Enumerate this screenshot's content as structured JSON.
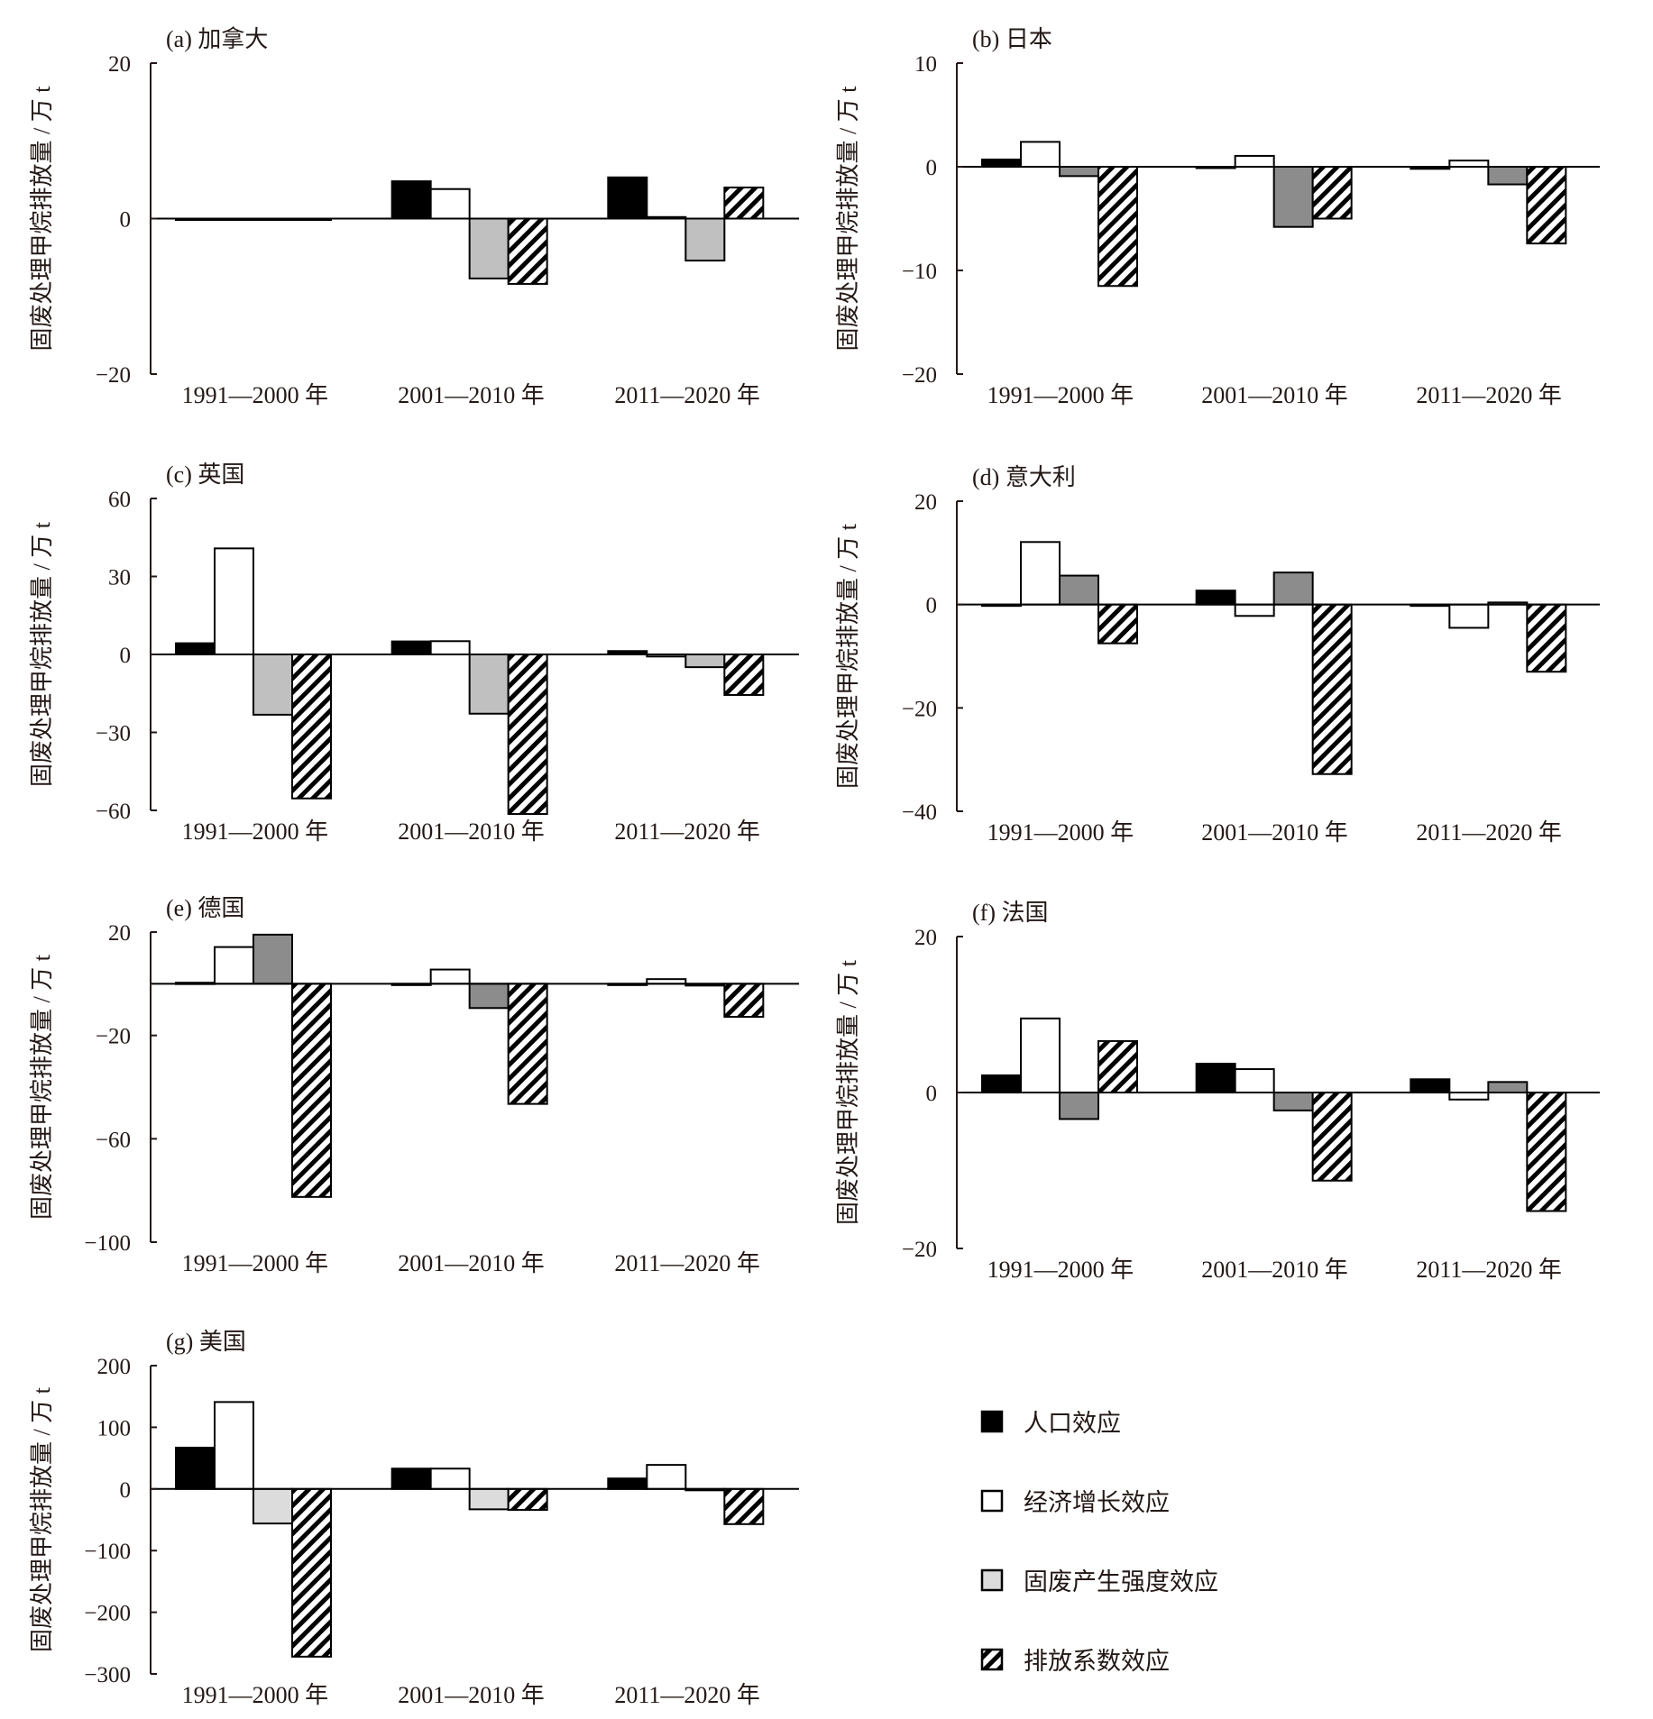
{
  "figure": {
    "ylabel": "固废处理甲烷排放量 / 万 t",
    "legend": [
      {
        "key": "population",
        "label": "人口效应",
        "style": "black"
      },
      {
        "key": "economic",
        "label": "经济增长效应",
        "style": "white"
      },
      {
        "key": "intensity",
        "label": "固废产生强度效应",
        "style": "grey"
      },
      {
        "key": "emission_factor",
        "label": "排放系数效应",
        "style": "hatched"
      }
    ],
    "colors": {
      "black": "#000000",
      "white": "#ffffff",
      "grey_light": "#c0c0c0",
      "grey_lighter": "#dcdcdc",
      "grey_dark": "#8c8c8c",
      "axis": "#231815"
    }
  },
  "chart_data": [
    {
      "type": "bar",
      "title": "(a) 加拿大",
      "ylabel": "固废处理甲烷排放量 / 万 t",
      "categories": [
        "1991—2000 年",
        "2001—2010 年",
        "2011—2020 年"
      ],
      "ylim": [
        -20,
        20
      ],
      "yticks": [
        20,
        0,
        -20
      ],
      "grey_shade": "grey_light",
      "series": [
        {
          "name": "人口效应",
          "values": [
            0,
            4.8,
            5.3
          ]
        },
        {
          "name": "经济增长效应",
          "values": [
            0,
            3.8,
            0.2
          ]
        },
        {
          "name": "固废产生强度效应",
          "values": [
            0,
            -7.7,
            -5.4
          ]
        },
        {
          "name": "排放系数效应",
          "values": [
            0,
            -8.4,
            4.0
          ]
        }
      ]
    },
    {
      "type": "bar",
      "title": "(b) 日本",
      "ylabel": "固废处理甲烷排放量 / 万 t",
      "categories": [
        "1991—2000 年",
        "2001—2010 年",
        "2011—2020 年"
      ],
      "ylim": [
        -20,
        10
      ],
      "yticks": [
        10,
        0,
        -10,
        -20
      ],
      "grey_shade": "grey_dark",
      "series": [
        {
          "name": "人口效应",
          "values": [
            0.7,
            -0.05,
            -0.2
          ]
        },
        {
          "name": "经济增长效应",
          "values": [
            2.4,
            1.05,
            0.6
          ]
        },
        {
          "name": "固废产生强度效应",
          "values": [
            -0.9,
            -5.8,
            -1.7
          ]
        },
        {
          "name": "排放系数效应",
          "values": [
            -11.5,
            -5.0,
            -7.4
          ]
        }
      ]
    },
    {
      "type": "bar",
      "title": "(c) 英国",
      "ylabel": "固废处理甲烷排放量 / 万 t",
      "categories": [
        "1991—2000 年",
        "2001—2010 年",
        "2011—2020 年"
      ],
      "ylim": [
        -60,
        60
      ],
      "yticks": [
        60,
        30,
        0,
        -30,
        -60
      ],
      "grey_shade": "grey_light",
      "series": [
        {
          "name": "人口效应",
          "values": [
            4.3,
            5.0,
            1.3
          ]
        },
        {
          "name": "经济增长效应",
          "values": [
            40.8,
            5.1,
            -0.8
          ]
        },
        {
          "name": "固废产生强度效应",
          "values": [
            -23.2,
            -22.8,
            -4.9
          ]
        },
        {
          "name": "排放系数效应",
          "values": [
            -55.4,
            -61.4,
            -15.6
          ]
        }
      ]
    },
    {
      "type": "bar",
      "title": "(d) 意大利",
      "ylabel": "固废处理甲烷排放量 / 万 t",
      "categories": [
        "1991—2000 年",
        "2001—2010 年",
        "2011—2020 年"
      ],
      "ylim": [
        -40,
        20
      ],
      "yticks": [
        20,
        0,
        -20,
        -40
      ],
      "grey_shade": "grey_dark",
      "series": [
        {
          "name": "人口效应",
          "values": [
            0,
            2.7,
            0
          ]
        },
        {
          "name": "经济增长效应",
          "values": [
            12.1,
            -2.2,
            -4.5
          ]
        },
        {
          "name": "固废产生强度效应",
          "values": [
            5.6,
            6.2,
            0.4
          ]
        },
        {
          "name": "排放系数效应",
          "values": [
            -7.5,
            -32.8,
            -13.0
          ]
        }
      ]
    },
    {
      "type": "bar",
      "title": "(e) 德国",
      "ylabel": "固废处理甲烷排放量 / 万 t",
      "categories": [
        "1991—2000 年",
        "2001—2010 年",
        "2011—2020 年"
      ],
      "ylim": [
        -100,
        20
      ],
      "yticks": [
        20,
        -20,
        -60,
        -100
      ],
      "grey_shade": "grey_dark",
      "series": [
        {
          "name": "人口效应",
          "values": [
            0.4,
            0,
            0
          ]
        },
        {
          "name": "经济增长效应",
          "values": [
            14.2,
            5.5,
            1.8
          ]
        },
        {
          "name": "固废产生强度效应",
          "values": [
            19.0,
            -9.4,
            -0.7
          ]
        },
        {
          "name": "排放系数效应",
          "values": [
            -82.5,
            -46.5,
            -12.8
          ]
        }
      ]
    },
    {
      "type": "bar",
      "title": "(f) 法国",
      "ylabel": "固废处理甲烷排放量 / 万 t",
      "categories": [
        "1991—2000 年",
        "2001—2010 年",
        "2011—2020 年"
      ],
      "ylim": [
        -20,
        20
      ],
      "yticks": [
        20,
        0,
        -20
      ],
      "grey_shade": "grey_dark",
      "series": [
        {
          "name": "人口效应",
          "values": [
            2.2,
            3.7,
            1.7
          ]
        },
        {
          "name": "经济增长效应",
          "values": [
            9.5,
            3.0,
            -0.9
          ]
        },
        {
          "name": "固废产生强度效应",
          "values": [
            -3.4,
            -2.3,
            1.35
          ]
        },
        {
          "name": "排放系数效应",
          "values": [
            6.6,
            -11.3,
            -15.2
          ]
        }
      ]
    },
    {
      "type": "bar",
      "title": "(g) 美国",
      "ylabel": "固废处理甲烷排放量 / 万 t",
      "categories": [
        "1991—2000 年",
        "2001—2010 年",
        "2011—2020 年"
      ],
      "ylim": [
        -300,
        200
      ],
      "yticks": [
        200,
        100,
        0,
        -100,
        -200,
        -300
      ],
      "grey_shade": "grey_lighter",
      "series": [
        {
          "name": "人口效应",
          "values": [
            67,
            33,
            17
          ]
        },
        {
          "name": "经济增长效应",
          "values": [
            141,
            33,
            39
          ]
        },
        {
          "name": "固废产生强度效应",
          "values": [
            -56,
            -33,
            -1
          ]
        },
        {
          "name": "排放系数效应",
          "values": [
            -272,
            -34,
            -57
          ]
        }
      ]
    }
  ]
}
